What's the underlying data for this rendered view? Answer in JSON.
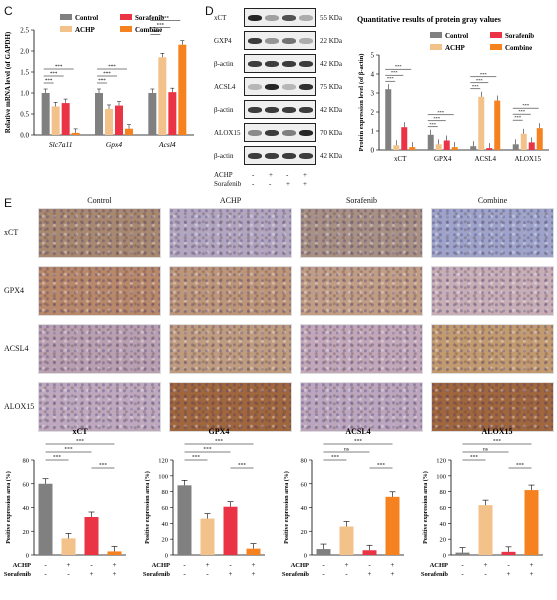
{
  "panels": {
    "c": "C",
    "d": "D",
    "e": "E"
  },
  "colors": {
    "control": "#808080",
    "achp": "#f2c28a",
    "sorafenib": "#ea3446",
    "combine": "#f5821f"
  },
  "panel_c": {
    "ylabel": "Relative mRNA level (of GAPDH)",
    "legend": [
      "Control",
      "Sorafenib",
      "ACHP",
      "Combine"
    ],
    "yticks": [
      "0.0",
      "0.5",
      "1.0",
      "1.5",
      "2.0",
      "2.5"
    ]
  },
  "panel_d": {
    "blots": [
      {
        "label": "xCT",
        "kda": "55 KDa"
      },
      {
        "label": "GXP4",
        "kda": "22 KDa"
      },
      {
        "label": "β-actin",
        "kda": "42 KDa"
      },
      {
        "label": "ACSL4",
        "kda": "75 KDa"
      },
      {
        "label": "β-actin",
        "kda": "42 KDa"
      },
      {
        "label": "ALOX15",
        "kda": "70 KDa"
      },
      {
        "label": "β-actin",
        "kda": "42 KDa"
      }
    ],
    "treat_rows": [
      {
        "name": "ACHP",
        "signs": [
          "-",
          "+",
          "-",
          "+"
        ]
      },
      {
        "name": "Sorafenib",
        "signs": [
          "-",
          "-",
          "+",
          "+"
        ]
      }
    ]
  },
  "panel_d_chart": {
    "title": "Quantitative results of protein gray values",
    "ylabel": "Protein expression level (of β-actin)",
    "legend": [
      "Control",
      "Sorafenib",
      "ACHP",
      "Combine"
    ],
    "yticks": [
      "0",
      "1",
      "2",
      "3",
      "4",
      "5"
    ]
  },
  "panel_e": {
    "col_labels": [
      "Control",
      "ACHP",
      "Sorafenib",
      "Combine"
    ],
    "row_labels": [
      "xCT",
      "GPX4",
      "ACSL4",
      "ALOX15"
    ]
  },
  "sig": {
    "three": "***",
    "ns": "ns"
  },
  "bottom_ylabel": "Positive expression area (%)",
  "bottom_treat": [
    {
      "name": "ACHP",
      "signs": [
        "-",
        "+",
        "-",
        "+"
      ]
    },
    {
      "name": "Sorafenib",
      "signs": [
        "-",
        "-",
        "+",
        "+"
      ]
    }
  ],
  "chart_data": [
    {
      "type": "bar",
      "categories": [
        "Slc7a11",
        "Gpx4",
        "Acsl4"
      ],
      "series": [
        {
          "name": "Control",
          "values": [
            1.0,
            1.0,
            1.0
          ]
        },
        {
          "name": "ACHP",
          "values": [
            0.68,
            0.62,
            1.85
          ]
        },
        {
          "name": "Sorafenib",
          "values": [
            0.76,
            0.7,
            1.02
          ]
        },
        {
          "name": "Combine",
          "values": [
            0.05,
            0.15,
            2.15
          ]
        }
      ],
      "ylabel": "Relative mRNA level (of GAPDH)",
      "ylim": [
        0,
        2.5
      ],
      "legend_position": "top"
    },
    {
      "type": "bar",
      "title": "Quantitative results of protein gray values",
      "categories": [
        "xCT",
        "GPX4",
        "ACSL4",
        "ALOX15"
      ],
      "series": [
        {
          "name": "Control",
          "values": [
            3.2,
            0.8,
            0.2,
            0.3
          ]
        },
        {
          "name": "ACHP",
          "values": [
            0.25,
            0.3,
            2.8,
            0.85
          ]
        },
        {
          "name": "Sorafenib",
          "values": [
            1.2,
            0.5,
            0.1,
            0.4
          ]
        },
        {
          "name": "Combine",
          "values": [
            0.15,
            0.15,
            2.6,
            1.15
          ]
        }
      ],
      "ylabel": "Protein expression level (of β-actin)",
      "ylim": [
        0,
        5
      ],
      "legend_position": "top-right"
    },
    {
      "type": "bar",
      "title": "xCT",
      "categories": [
        "Control",
        "ACHP",
        "Sorafenib",
        "Combine"
      ],
      "values": [
        60,
        14,
        32,
        3
      ],
      "ylabel": "Positive expression area (%)",
      "ylim": [
        0,
        80
      ],
      "yticks": [
        "0",
        "20",
        "40",
        "60",
        "80"
      ]
    },
    {
      "type": "bar",
      "title": "GPX4",
      "categories": [
        "Control",
        "ACHP",
        "Sorafenib",
        "Combine"
      ],
      "values": [
        88,
        46,
        61,
        8
      ],
      "ylabel": "Positive expression area (%)",
      "ylim": [
        0,
        120
      ],
      "yticks": [
        "0",
        "20",
        "40",
        "60",
        "80",
        "100",
        "120"
      ]
    },
    {
      "type": "bar",
      "title": "ACSL4",
      "categories": [
        "Control",
        "ACHP",
        "Sorafenib",
        "Combine"
      ],
      "values": [
        5,
        24,
        4,
        49
      ],
      "ylabel": "Positive expression area (%)",
      "ylim": [
        0,
        80
      ],
      "yticks": [
        "0",
        "20",
        "40",
        "60",
        "80"
      ]
    },
    {
      "type": "bar",
      "title": "ALOX15",
      "categories": [
        "Control",
        "ACHP",
        "Sorafenib",
        "Combine"
      ],
      "values": [
        3,
        63,
        4,
        82
      ],
      "ylabel": "Positive expression area (%)",
      "ylim": [
        0,
        120
      ],
      "yticks": [
        "0",
        "20",
        "40",
        "60",
        "80",
        "100",
        "120"
      ]
    }
  ]
}
